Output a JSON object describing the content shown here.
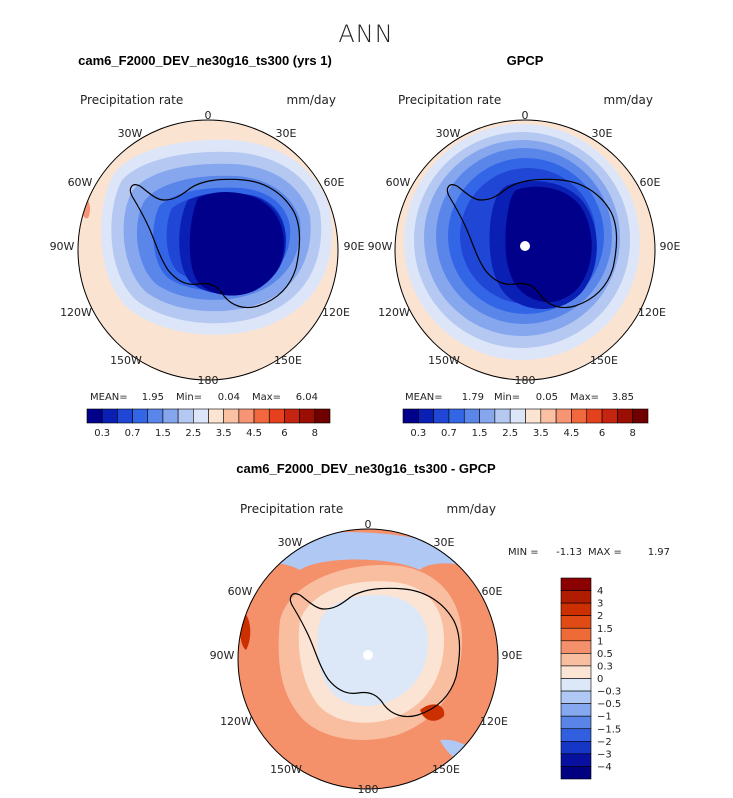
{
  "figure": {
    "title": "ANN"
  },
  "chart_data": [
    {
      "type": "heatmap",
      "projection": "south-polar-stereographic",
      "title": "cam6_F2000_DEV_ne30g16_ts300 (yrs 1)",
      "variable_label": "Precipitation rate",
      "units": "mm/day",
      "longitude_labels": [
        "0",
        "30E",
        "60E",
        "90E",
        "120E",
        "150E",
        "180",
        "150W",
        "120W",
        "90W",
        "60W",
        "30W"
      ],
      "stats": {
        "mean_label": "MEAN=",
        "mean": "1.95",
        "min_label": "Min=",
        "min": "0.04",
        "max_label": "Max=",
        "max": "6.04"
      },
      "colorbar": {
        "orientation": "horizontal",
        "tick_labels": [
          "0.3",
          "0.7",
          "1.5",
          "2.5",
          "3.5",
          "4.5",
          "6",
          "8"
        ]
      }
    },
    {
      "type": "heatmap",
      "projection": "south-polar-stereographic",
      "title": "GPCP",
      "variable_label": "Precipitation rate",
      "units": "mm/day",
      "longitude_labels": [
        "0",
        "30E",
        "60E",
        "90E",
        "120E",
        "150E",
        "180",
        "150W",
        "120W",
        "90W",
        "60W",
        "30W"
      ],
      "stats": {
        "mean_label": "MEAN=",
        "mean": "1.79",
        "min_label": "Min=",
        "min": "0.05",
        "max_label": "Max=",
        "max": "3.85"
      },
      "colorbar": {
        "orientation": "horizontal",
        "tick_labels": [
          "0.3",
          "0.7",
          "1.5",
          "2.5",
          "3.5",
          "4.5",
          "6",
          "8"
        ]
      }
    },
    {
      "type": "heatmap",
      "projection": "south-polar-stereographic",
      "title": "cam6_F2000_DEV_ne30g16_ts300 - GPCP",
      "variable_label": "Precipitation rate",
      "units": "mm/day",
      "longitude_labels": [
        "0",
        "30E",
        "60E",
        "90E",
        "120E",
        "150E",
        "180",
        "150W",
        "120W",
        "90W",
        "60W",
        "30W"
      ],
      "stats": {
        "min_label": "MIN =",
        "min": "-1.13",
        "max_label": "MAX =",
        "max": "1.97"
      },
      "colorbar": {
        "orientation": "vertical",
        "tick_labels": [
          "4",
          "3",
          "2",
          "1.5",
          "1",
          "0.5",
          "0.3",
          "0",
          "−0.3",
          "−0.5",
          "−1",
          "−1.5",
          "−2",
          "−3",
          "−4"
        ]
      }
    }
  ],
  "colors": {
    "abs_scale": [
      "#00008b",
      "#0a1fb4",
      "#1f46d4",
      "#3366e6",
      "#5a86ea",
      "#86a6ee",
      "#b4c8f2",
      "#dce6f8",
      "#fce4d2",
      "#f9c0a2",
      "#f69474",
      "#f2683e",
      "#e6411e",
      "#c42410",
      "#9a0e04",
      "#700000"
    ],
    "diff_scale": [
      "#8b0000",
      "#b01c00",
      "#cc3000",
      "#e04a14",
      "#ee6a36",
      "#f4906a",
      "#f9bea0",
      "#fce4d4",
      "#dce8f8",
      "#b0c8f4",
      "#86a8ee",
      "#5a84e8",
      "#3060e0",
      "#1636c6",
      "#0810a0",
      "#000080"
    ],
    "coast": "#000000"
  }
}
